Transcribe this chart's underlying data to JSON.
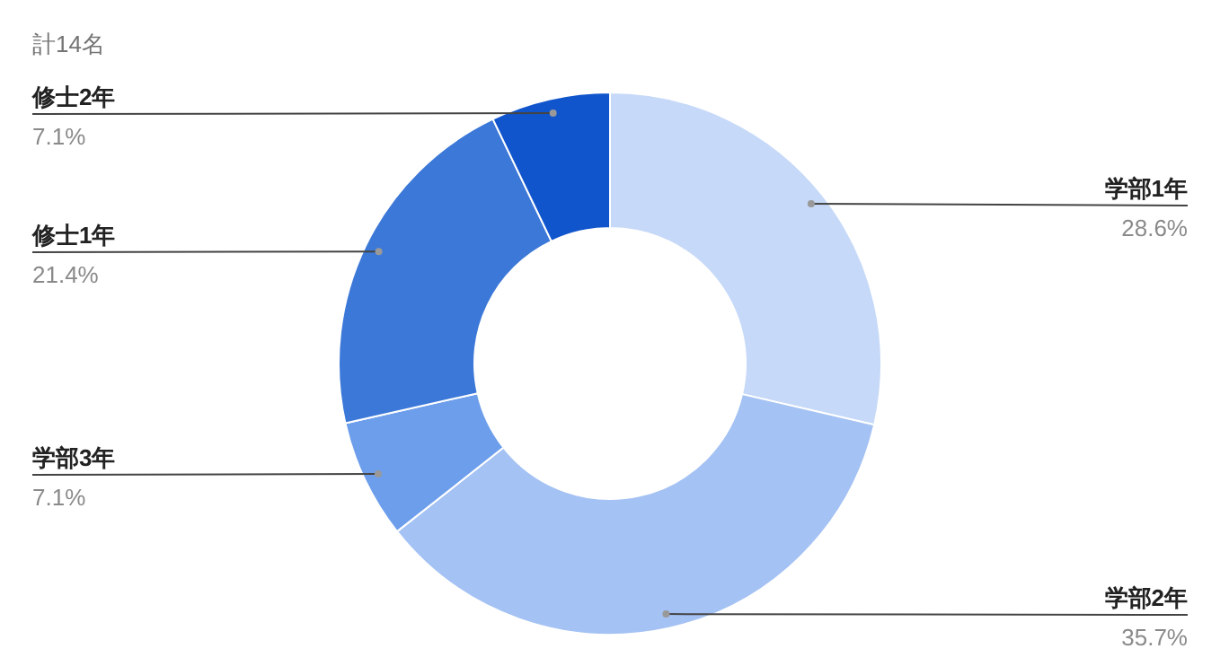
{
  "chart_data": {
    "type": "donut",
    "title": "計14名",
    "categories": [
      "学部1年",
      "学部2年",
      "学部3年",
      "修士1年",
      "修士2年"
    ],
    "values": [
      28.6,
      35.7,
      7.1,
      21.4,
      7.1
    ],
    "colors": [
      "#c6d9f8",
      "#a4c2f4",
      "#6d9eeb",
      "#3c78d8",
      "#1155cc"
    ],
    "value_labels": [
      "28.6%",
      "35.7%",
      "7.1%",
      "21.4%",
      "7.1%"
    ],
    "legend": false
  }
}
